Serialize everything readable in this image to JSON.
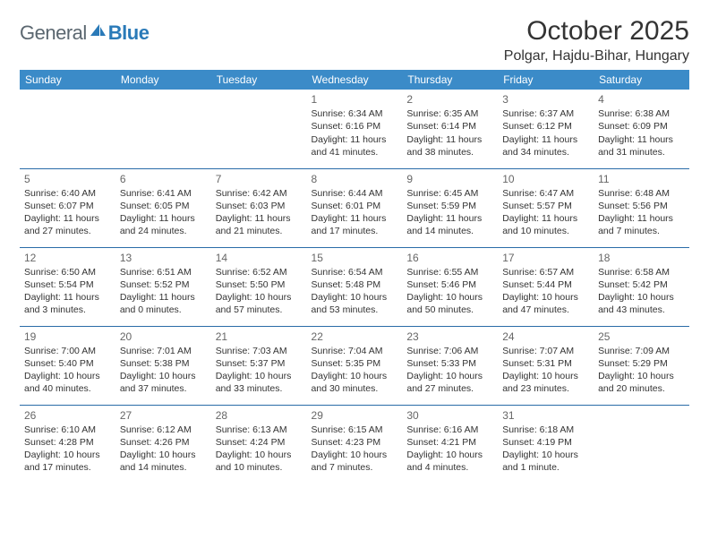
{
  "header": {
    "logo_part1": "General",
    "logo_part2": "Blue",
    "month_title": "October 2025",
    "location": "Polgar, Hajdu-Bihar, Hungary"
  },
  "calendar": {
    "header_bg": "#3b8bc8",
    "header_fg": "#ffffff",
    "border_color": "#2a6ca8",
    "day_headers": [
      "Sunday",
      "Monday",
      "Tuesday",
      "Wednesday",
      "Thursday",
      "Friday",
      "Saturday"
    ],
    "weeks": [
      [
        null,
        null,
        null,
        {
          "n": "1",
          "sr": "6:34 AM",
          "ss": "6:16 PM",
          "dl": "11 hours and 41 minutes."
        },
        {
          "n": "2",
          "sr": "6:35 AM",
          "ss": "6:14 PM",
          "dl": "11 hours and 38 minutes."
        },
        {
          "n": "3",
          "sr": "6:37 AM",
          "ss": "6:12 PM",
          "dl": "11 hours and 34 minutes."
        },
        {
          "n": "4",
          "sr": "6:38 AM",
          "ss": "6:09 PM",
          "dl": "11 hours and 31 minutes."
        }
      ],
      [
        {
          "n": "5",
          "sr": "6:40 AM",
          "ss": "6:07 PM",
          "dl": "11 hours and 27 minutes."
        },
        {
          "n": "6",
          "sr": "6:41 AM",
          "ss": "6:05 PM",
          "dl": "11 hours and 24 minutes."
        },
        {
          "n": "7",
          "sr": "6:42 AM",
          "ss": "6:03 PM",
          "dl": "11 hours and 21 minutes."
        },
        {
          "n": "8",
          "sr": "6:44 AM",
          "ss": "6:01 PM",
          "dl": "11 hours and 17 minutes."
        },
        {
          "n": "9",
          "sr": "6:45 AM",
          "ss": "5:59 PM",
          "dl": "11 hours and 14 minutes."
        },
        {
          "n": "10",
          "sr": "6:47 AM",
          "ss": "5:57 PM",
          "dl": "11 hours and 10 minutes."
        },
        {
          "n": "11",
          "sr": "6:48 AM",
          "ss": "5:56 PM",
          "dl": "11 hours and 7 minutes."
        }
      ],
      [
        {
          "n": "12",
          "sr": "6:50 AM",
          "ss": "5:54 PM",
          "dl": "11 hours and 3 minutes."
        },
        {
          "n": "13",
          "sr": "6:51 AM",
          "ss": "5:52 PM",
          "dl": "11 hours and 0 minutes."
        },
        {
          "n": "14",
          "sr": "6:52 AM",
          "ss": "5:50 PM",
          "dl": "10 hours and 57 minutes."
        },
        {
          "n": "15",
          "sr": "6:54 AM",
          "ss": "5:48 PM",
          "dl": "10 hours and 53 minutes."
        },
        {
          "n": "16",
          "sr": "6:55 AM",
          "ss": "5:46 PM",
          "dl": "10 hours and 50 minutes."
        },
        {
          "n": "17",
          "sr": "6:57 AM",
          "ss": "5:44 PM",
          "dl": "10 hours and 47 minutes."
        },
        {
          "n": "18",
          "sr": "6:58 AM",
          "ss": "5:42 PM",
          "dl": "10 hours and 43 minutes."
        }
      ],
      [
        {
          "n": "19",
          "sr": "7:00 AM",
          "ss": "5:40 PM",
          "dl": "10 hours and 40 minutes."
        },
        {
          "n": "20",
          "sr": "7:01 AM",
          "ss": "5:38 PM",
          "dl": "10 hours and 37 minutes."
        },
        {
          "n": "21",
          "sr": "7:03 AM",
          "ss": "5:37 PM",
          "dl": "10 hours and 33 minutes."
        },
        {
          "n": "22",
          "sr": "7:04 AM",
          "ss": "5:35 PM",
          "dl": "10 hours and 30 minutes."
        },
        {
          "n": "23",
          "sr": "7:06 AM",
          "ss": "5:33 PM",
          "dl": "10 hours and 27 minutes."
        },
        {
          "n": "24",
          "sr": "7:07 AM",
          "ss": "5:31 PM",
          "dl": "10 hours and 23 minutes."
        },
        {
          "n": "25",
          "sr": "7:09 AM",
          "ss": "5:29 PM",
          "dl": "10 hours and 20 minutes."
        }
      ],
      [
        {
          "n": "26",
          "sr": "6:10 AM",
          "ss": "4:28 PM",
          "dl": "10 hours and 17 minutes."
        },
        {
          "n": "27",
          "sr": "6:12 AM",
          "ss": "4:26 PM",
          "dl": "10 hours and 14 minutes."
        },
        {
          "n": "28",
          "sr": "6:13 AM",
          "ss": "4:24 PM",
          "dl": "10 hours and 10 minutes."
        },
        {
          "n": "29",
          "sr": "6:15 AM",
          "ss": "4:23 PM",
          "dl": "10 hours and 7 minutes."
        },
        {
          "n": "30",
          "sr": "6:16 AM",
          "ss": "4:21 PM",
          "dl": "10 hours and 4 minutes."
        },
        {
          "n": "31",
          "sr": "6:18 AM",
          "ss": "4:19 PM",
          "dl": "10 hours and 1 minute."
        },
        null
      ]
    ]
  },
  "labels": {
    "sunrise": "Sunrise: ",
    "sunset": "Sunset: ",
    "daylight": "Daylight: "
  }
}
